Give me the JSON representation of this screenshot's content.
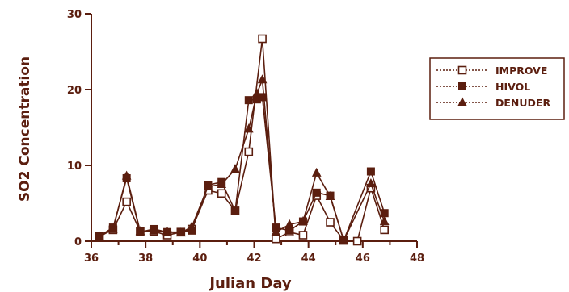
{
  "colors": {
    "ink": "#5b1e0f",
    "background": "#ffffff"
  },
  "chart_data": {
    "type": "line",
    "title": "",
    "xlabel": "Julian Day",
    "ylabel": "SO2  Concentration",
    "xlim": [
      36,
      48
    ],
    "ylim": [
      0,
      30
    ],
    "x_ticks": [
      36,
      38,
      40,
      42,
      44,
      46,
      48
    ],
    "y_ticks": [
      0,
      10,
      20,
      30
    ],
    "x_tick_labels": [
      "36",
      "38",
      "40",
      "42",
      "44",
      "46",
      "48"
    ],
    "y_tick_labels": [
      "0",
      "10",
      "20",
      "30"
    ],
    "grid": false,
    "legend_position": "right",
    "series": [
      {
        "name": "IMPROVE",
        "marker": "open-square",
        "points": [
          [
            36.3,
            0.7
          ],
          [
            36.8,
            1.5
          ],
          [
            37.3,
            5.2
          ],
          [
            37.8,
            1.3
          ],
          [
            38.3,
            1.3
          ],
          [
            38.8,
            0.8
          ],
          [
            39.3,
            1.2
          ],
          [
            39.7,
            1.6
          ],
          [
            40.3,
            6.7
          ],
          [
            40.8,
            6.3
          ],
          [
            41.3,
            4.0
          ],
          [
            41.8,
            11.8
          ],
          [
            42.3,
            26.7
          ],
          [
            42.8,
            0.3
          ],
          [
            43.3,
            1.2
          ],
          [
            43.8,
            0.8
          ],
          [
            44.3,
            6.0
          ],
          [
            44.8,
            2.5
          ],
          [
            45.3,
            0.1
          ],
          [
            45.8,
            0.0
          ],
          [
            46.3,
            7.0
          ],
          [
            46.8,
            1.5
          ]
        ]
      },
      {
        "name": "HIVOL",
        "marker": "filled-square",
        "points": [
          [
            36.3,
            0.7
          ],
          [
            36.8,
            1.8
          ],
          [
            37.3,
            8.3
          ],
          [
            37.8,
            1.2
          ],
          [
            38.3,
            1.6
          ],
          [
            38.8,
            1.2
          ],
          [
            39.3,
            1.2
          ],
          [
            39.7,
            1.4
          ],
          [
            40.3,
            7.4
          ],
          [
            40.8,
            7.8
          ],
          [
            41.3,
            4.0
          ],
          [
            41.8,
            18.6
          ],
          [
            42.1,
            18.7
          ],
          [
            42.3,
            19.0
          ],
          [
            42.8,
            1.8
          ],
          [
            43.3,
            1.4
          ],
          [
            43.8,
            2.6
          ],
          [
            44.3,
            6.4
          ],
          [
            44.8,
            6.0
          ],
          [
            45.3,
            0.1
          ],
          [
            46.3,
            9.2
          ],
          [
            46.8,
            3.7
          ]
        ]
      },
      {
        "name": "DENUDER",
        "marker": "filled-triangle",
        "points": [
          [
            36.3,
            0.6
          ],
          [
            36.8,
            1.6
          ],
          [
            37.3,
            8.6
          ],
          [
            37.8,
            1.3
          ],
          [
            38.3,
            1.4
          ],
          [
            38.8,
            1.2
          ],
          [
            39.3,
            1.1
          ],
          [
            39.7,
            1.9
          ],
          [
            40.3,
            7.2
          ],
          [
            40.8,
            7.5
          ],
          [
            41.3,
            9.5
          ],
          [
            41.8,
            14.8
          ],
          [
            42.1,
            19.5
          ],
          [
            42.3,
            21.3
          ],
          [
            42.8,
            1.2
          ],
          [
            43.3,
            2.2
          ],
          [
            43.8,
            2.6
          ],
          [
            44.3,
            9.0
          ],
          [
            44.8,
            5.9
          ],
          [
            45.3,
            0.1
          ],
          [
            46.3,
            7.6
          ],
          [
            46.8,
            2.6
          ]
        ]
      }
    ]
  }
}
